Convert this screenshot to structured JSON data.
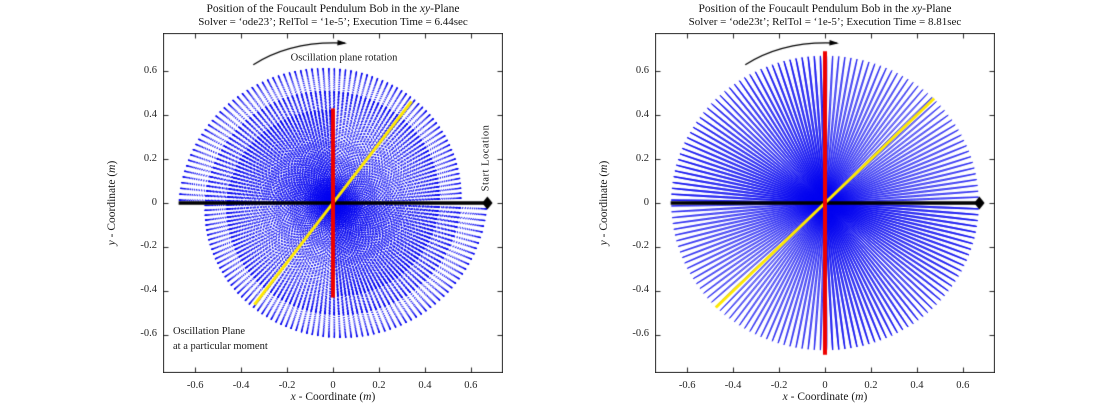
{
  "chart_data": {
    "type": "scatter",
    "title": "Position of the Foucault Pendulum Bob in the xy-Plane",
    "legend_position": "none",
    "grid": false,
    "plots": [
      {
        "id": "ode23",
        "title_parts": {
          "pre": "Position of the Foucault Pendulum Bob in the ",
          "italic": "xy",
          "post": "-Plane"
        },
        "subtitle": "Solver = ‘ode23’; RelTol = ‘1e-5’; Execution Time = 6.44sec",
        "xlabel_text": "x - Coordinate (m)",
        "ylabel_text": "y - Coordinate (m)",
        "xlabel_parts": {
          "var": "x",
          "mid": " - Coordinate (",
          "unit": "m",
          "close": ")"
        },
        "ylabel_parts": {
          "var": "y",
          "mid": " - Coordinate (",
          "unit": "m",
          "close": ")"
        },
        "xlim": [
          -0.74,
          0.74
        ],
        "ylim": [
          -0.773,
          0.773
        ],
        "xticks": [
          -0.6,
          -0.4,
          -0.2,
          0,
          0.2,
          0.4,
          0.6
        ],
        "yticks": [
          -0.6,
          -0.4,
          -0.2,
          0,
          0.2,
          0.4,
          0.6
        ],
        "xtick_labels": [
          "-0.6",
          "-0.4",
          "-0.2",
          "0",
          "0.2",
          "0.4",
          "0.6"
        ],
        "ytick_labels": [
          "-0.6",
          "-0.4",
          "-0.2",
          "0",
          "0.2",
          "0.4",
          "0.6"
        ],
        "trace": {
          "color": "#0000f0",
          "start_point": [
            0.67,
            0
          ],
          "amplitude_start": 0.67,
          "amplitude_end": 0.42,
          "sweep_deg": 450,
          "rotation": "clockwise",
          "oscillations_per_revolution": 157,
          "render": "dots",
          "samples": 36000
        },
        "start_line": {
          "color": "#000000",
          "from": [
            -0.672,
            0
          ],
          "to": [
            0.672,
            0
          ],
          "marker": "diamond",
          "marker_at": [
            0.672,
            0
          ]
        },
        "moment_plane_line": {
          "color": "#ffe900",
          "angle_deg": 53.5,
          "radius": 0.575
        },
        "current_plane_line": {
          "color": "#ee0000",
          "angle_deg": 90,
          "radius": 0.43
        },
        "arrow": {
          "from": [
            -0.347,
            0.629
          ],
          "control": [
            -0.18,
            0.74
          ],
          "to": [
            0.052,
            0.727
          ]
        },
        "annotations": {
          "rotation_label": "Oscillation plane rotation",
          "start_label": "Start Location",
          "moment_line1": "Oscillation Plane",
          "moment_line2": "at a particular moment"
        }
      },
      {
        "id": "ode23t",
        "title_parts": {
          "pre": "Position of the Foucault Pendulum Bob in the ",
          "italic": "xy",
          "post": "-Plane"
        },
        "subtitle": "Solver = ‘ode23t’; RelTol = ‘1e-5’; Execution Time = 8.81sec",
        "xlabel_text": "x - Coordinate (m)",
        "ylabel_text": "y - Coordinate (m)",
        "xlabel_parts": {
          "var": "x",
          "mid": " - Coordinate (",
          "unit": "m",
          "close": ")"
        },
        "ylabel_parts": {
          "var": "y",
          "mid": " - Coordinate (",
          "unit": "m",
          "close": ")"
        },
        "xlim": [
          -0.74,
          0.74
        ],
        "ylim": [
          -0.773,
          0.773
        ],
        "xticks": [
          -0.6,
          -0.4,
          -0.2,
          0,
          0.2,
          0.4,
          0.6
        ],
        "yticks": [
          -0.6,
          -0.4,
          -0.2,
          0,
          0.2,
          0.4,
          0.6
        ],
        "xtick_labels": [
          "-0.6",
          "-0.4",
          "-0.2",
          "0",
          "0.2",
          "0.4",
          "0.6"
        ],
        "ytick_labels": [
          "-0.6",
          "-0.4",
          "-0.2",
          "0",
          "0.2",
          "0.4",
          "0.6"
        ],
        "trace": {
          "color": "#0000f0",
          "start_point": [
            0.67,
            0
          ],
          "amplitude_start": 0.67,
          "amplitude_end": 0.668,
          "sweep_deg": 450,
          "rotation": "clockwise",
          "oscillations_per_revolution": 157,
          "render": "lines",
          "samples": 52000
        },
        "start_line": {
          "color": "#000000",
          "from": [
            -0.672,
            0
          ],
          "to": [
            0.672,
            0
          ],
          "marker": "diamond",
          "marker_at": [
            0.672,
            0
          ]
        },
        "moment_plane_line": {
          "color": "#ffe900",
          "angle_deg": 45,
          "radius": 0.672
        },
        "current_plane_line": {
          "color": "#ee0000",
          "angle_deg": 90,
          "radius": 0.69
        },
        "arrow": {
          "from": [
            -0.347,
            0.629
          ],
          "control": [
            -0.18,
            0.74
          ],
          "to": [
            0.052,
            0.727
          ]
        },
        "annotations": {}
      }
    ]
  }
}
